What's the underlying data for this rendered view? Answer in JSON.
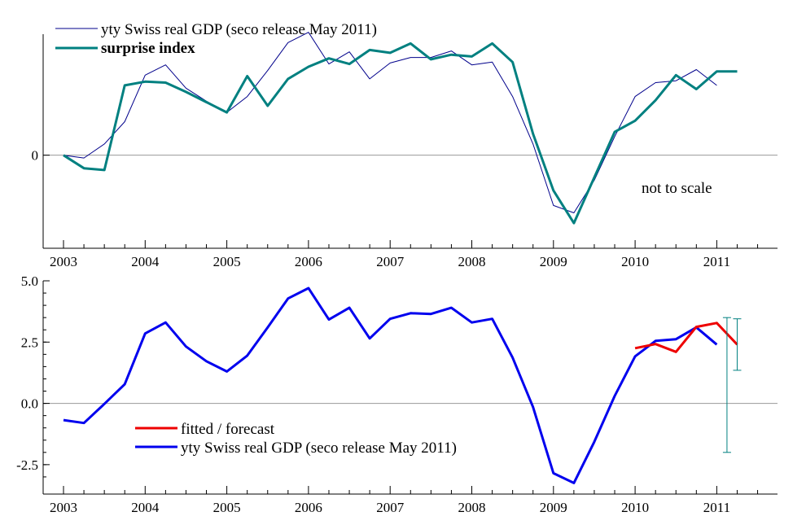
{
  "chart_data": [
    {
      "type": "line",
      "x_ticks": [
        2003,
        2004,
        2005,
        2006,
        2007,
        2008,
        2009,
        2010,
        2011
      ],
      "y_ticks": [
        {
          "value": 0,
          "label": "0"
        }
      ],
      "xlim": [
        2003,
        2011.75
      ],
      "ylim": [
        -1.0,
        1.3
      ],
      "annotation": "not to scale",
      "series": [
        {
          "name": "yty Swiss real GDP (seco release May 2011)",
          "color": "#00008b",
          "points": [
            [
              2003.0,
              0.0
            ],
            [
              2003.25,
              -0.03
            ],
            [
              2003.5,
              0.12
            ],
            [
              2003.75,
              0.36
            ],
            [
              2004.0,
              0.86
            ],
            [
              2004.25,
              0.97
            ],
            [
              2004.5,
              0.72
            ],
            [
              2004.75,
              0.58
            ],
            [
              2005.0,
              0.46
            ],
            [
              2005.25,
              0.63
            ],
            [
              2005.5,
              0.91
            ],
            [
              2005.75,
              1.21
            ],
            [
              2006.0,
              1.32
            ],
            [
              2006.25,
              0.98
            ],
            [
              2006.5,
              1.11
            ],
            [
              2006.75,
              0.82
            ],
            [
              2007.0,
              0.99
            ],
            [
              2007.25,
              1.05
            ],
            [
              2007.5,
              1.05
            ],
            [
              2007.75,
              1.12
            ],
            [
              2008.0,
              0.97
            ],
            [
              2008.25,
              1.0
            ],
            [
              2008.5,
              0.63
            ],
            [
              2008.75,
              0.12
            ],
            [
              2009.0,
              -0.54
            ],
            [
              2009.25,
              -0.62
            ],
            [
              2009.5,
              -0.27
            ],
            [
              2009.75,
              0.2
            ],
            [
              2010.0,
              0.63
            ],
            [
              2010.25,
              0.78
            ],
            [
              2010.5,
              0.8
            ],
            [
              2010.75,
              0.92
            ],
            [
              2011.0,
              0.75
            ]
          ]
        },
        {
          "name": "surprise index",
          "color": "#008080",
          "points": [
            [
              2003.0,
              0.0
            ],
            [
              2003.25,
              -0.14
            ],
            [
              2003.5,
              -0.16
            ],
            [
              2003.75,
              0.75
            ],
            [
              2004.0,
              0.79
            ],
            [
              2004.25,
              0.78
            ],
            [
              2004.5,
              0.68
            ],
            [
              2004.75,
              0.57
            ],
            [
              2005.0,
              0.46
            ],
            [
              2005.25,
              0.85
            ],
            [
              2005.5,
              0.53
            ],
            [
              2005.75,
              0.82
            ],
            [
              2006.0,
              0.95
            ],
            [
              2006.25,
              1.04
            ],
            [
              2006.5,
              0.98
            ],
            [
              2006.75,
              1.13
            ],
            [
              2007.0,
              1.1
            ],
            [
              2007.25,
              1.2
            ],
            [
              2007.5,
              1.03
            ],
            [
              2007.75,
              1.08
            ],
            [
              2008.0,
              1.06
            ],
            [
              2008.25,
              1.2
            ],
            [
              2008.5,
              1.0
            ],
            [
              2008.75,
              0.23
            ],
            [
              2009.0,
              -0.38
            ],
            [
              2009.25,
              -0.73
            ],
            [
              2009.5,
              -0.24
            ],
            [
              2009.75,
              0.25
            ],
            [
              2010.0,
              0.37
            ],
            [
              2010.25,
              0.59
            ],
            [
              2010.5,
              0.86
            ],
            [
              2010.75,
              0.71
            ],
            [
              2011.0,
              0.9
            ],
            [
              2011.25,
              0.9
            ]
          ]
        }
      ]
    },
    {
      "type": "line",
      "x_ticks": [
        2003,
        2004,
        2005,
        2006,
        2007,
        2008,
        2009,
        2010,
        2011
      ],
      "y_ticks": [
        {
          "value": 5.0,
          "label": "5.0"
        },
        {
          "value": 2.5,
          "label": "2.5"
        },
        {
          "value": 0.0,
          "label": "0.0"
        },
        {
          "value": -2.5,
          "label": "-2.5"
        }
      ],
      "xlim": [
        2003,
        2011.75
      ],
      "ylim": [
        -3.7,
        5.0
      ],
      "series": [
        {
          "name": "yty Swiss real GDP (seco release May 2011)",
          "color": "#0000ee",
          "points": [
            [
              2003.0,
              -0.68
            ],
            [
              2003.25,
              -0.8
            ],
            [
              2003.5,
              -0.02
            ],
            [
              2003.75,
              0.78
            ],
            [
              2004.0,
              2.85
            ],
            [
              2004.25,
              3.3
            ],
            [
              2004.5,
              2.32
            ],
            [
              2004.75,
              1.72
            ],
            [
              2005.0,
              1.3
            ],
            [
              2005.25,
              1.95
            ],
            [
              2005.5,
              3.1
            ],
            [
              2005.75,
              4.28
            ],
            [
              2006.0,
              4.7
            ],
            [
              2006.25,
              3.42
            ],
            [
              2006.5,
              3.9
            ],
            [
              2006.75,
              2.65
            ],
            [
              2007.0,
              3.45
            ],
            [
              2007.25,
              3.68
            ],
            [
              2007.5,
              3.65
            ],
            [
              2007.75,
              3.9
            ],
            [
              2008.0,
              3.3
            ],
            [
              2008.25,
              3.45
            ],
            [
              2008.5,
              1.87
            ],
            [
              2008.75,
              -0.15
            ],
            [
              2009.0,
              -2.85
            ],
            [
              2009.25,
              -3.25
            ],
            [
              2009.5,
              -1.57
            ],
            [
              2009.75,
              0.3
            ],
            [
              2010.0,
              1.92
            ],
            [
              2010.25,
              2.55
            ],
            [
              2010.5,
              2.62
            ],
            [
              2010.75,
              3.1
            ],
            [
              2011.0,
              2.4
            ]
          ]
        },
        {
          "name": "fitted / forecast",
          "color": "#ee0000",
          "points": [
            [
              2010.0,
              2.25
            ],
            [
              2010.25,
              2.42
            ],
            [
              2010.5,
              2.1
            ],
            [
              2010.75,
              3.12
            ],
            [
              2011.0,
              3.28
            ],
            [
              2011.25,
              2.4
            ]
          ]
        }
      ],
      "error_bars": [
        {
          "x": 2011.125,
          "low": -2.0,
          "high": 3.5,
          "color": "#008080"
        },
        {
          "x": 2011.25,
          "low": 1.35,
          "high": 3.45,
          "color": "#008080"
        }
      ]
    }
  ]
}
